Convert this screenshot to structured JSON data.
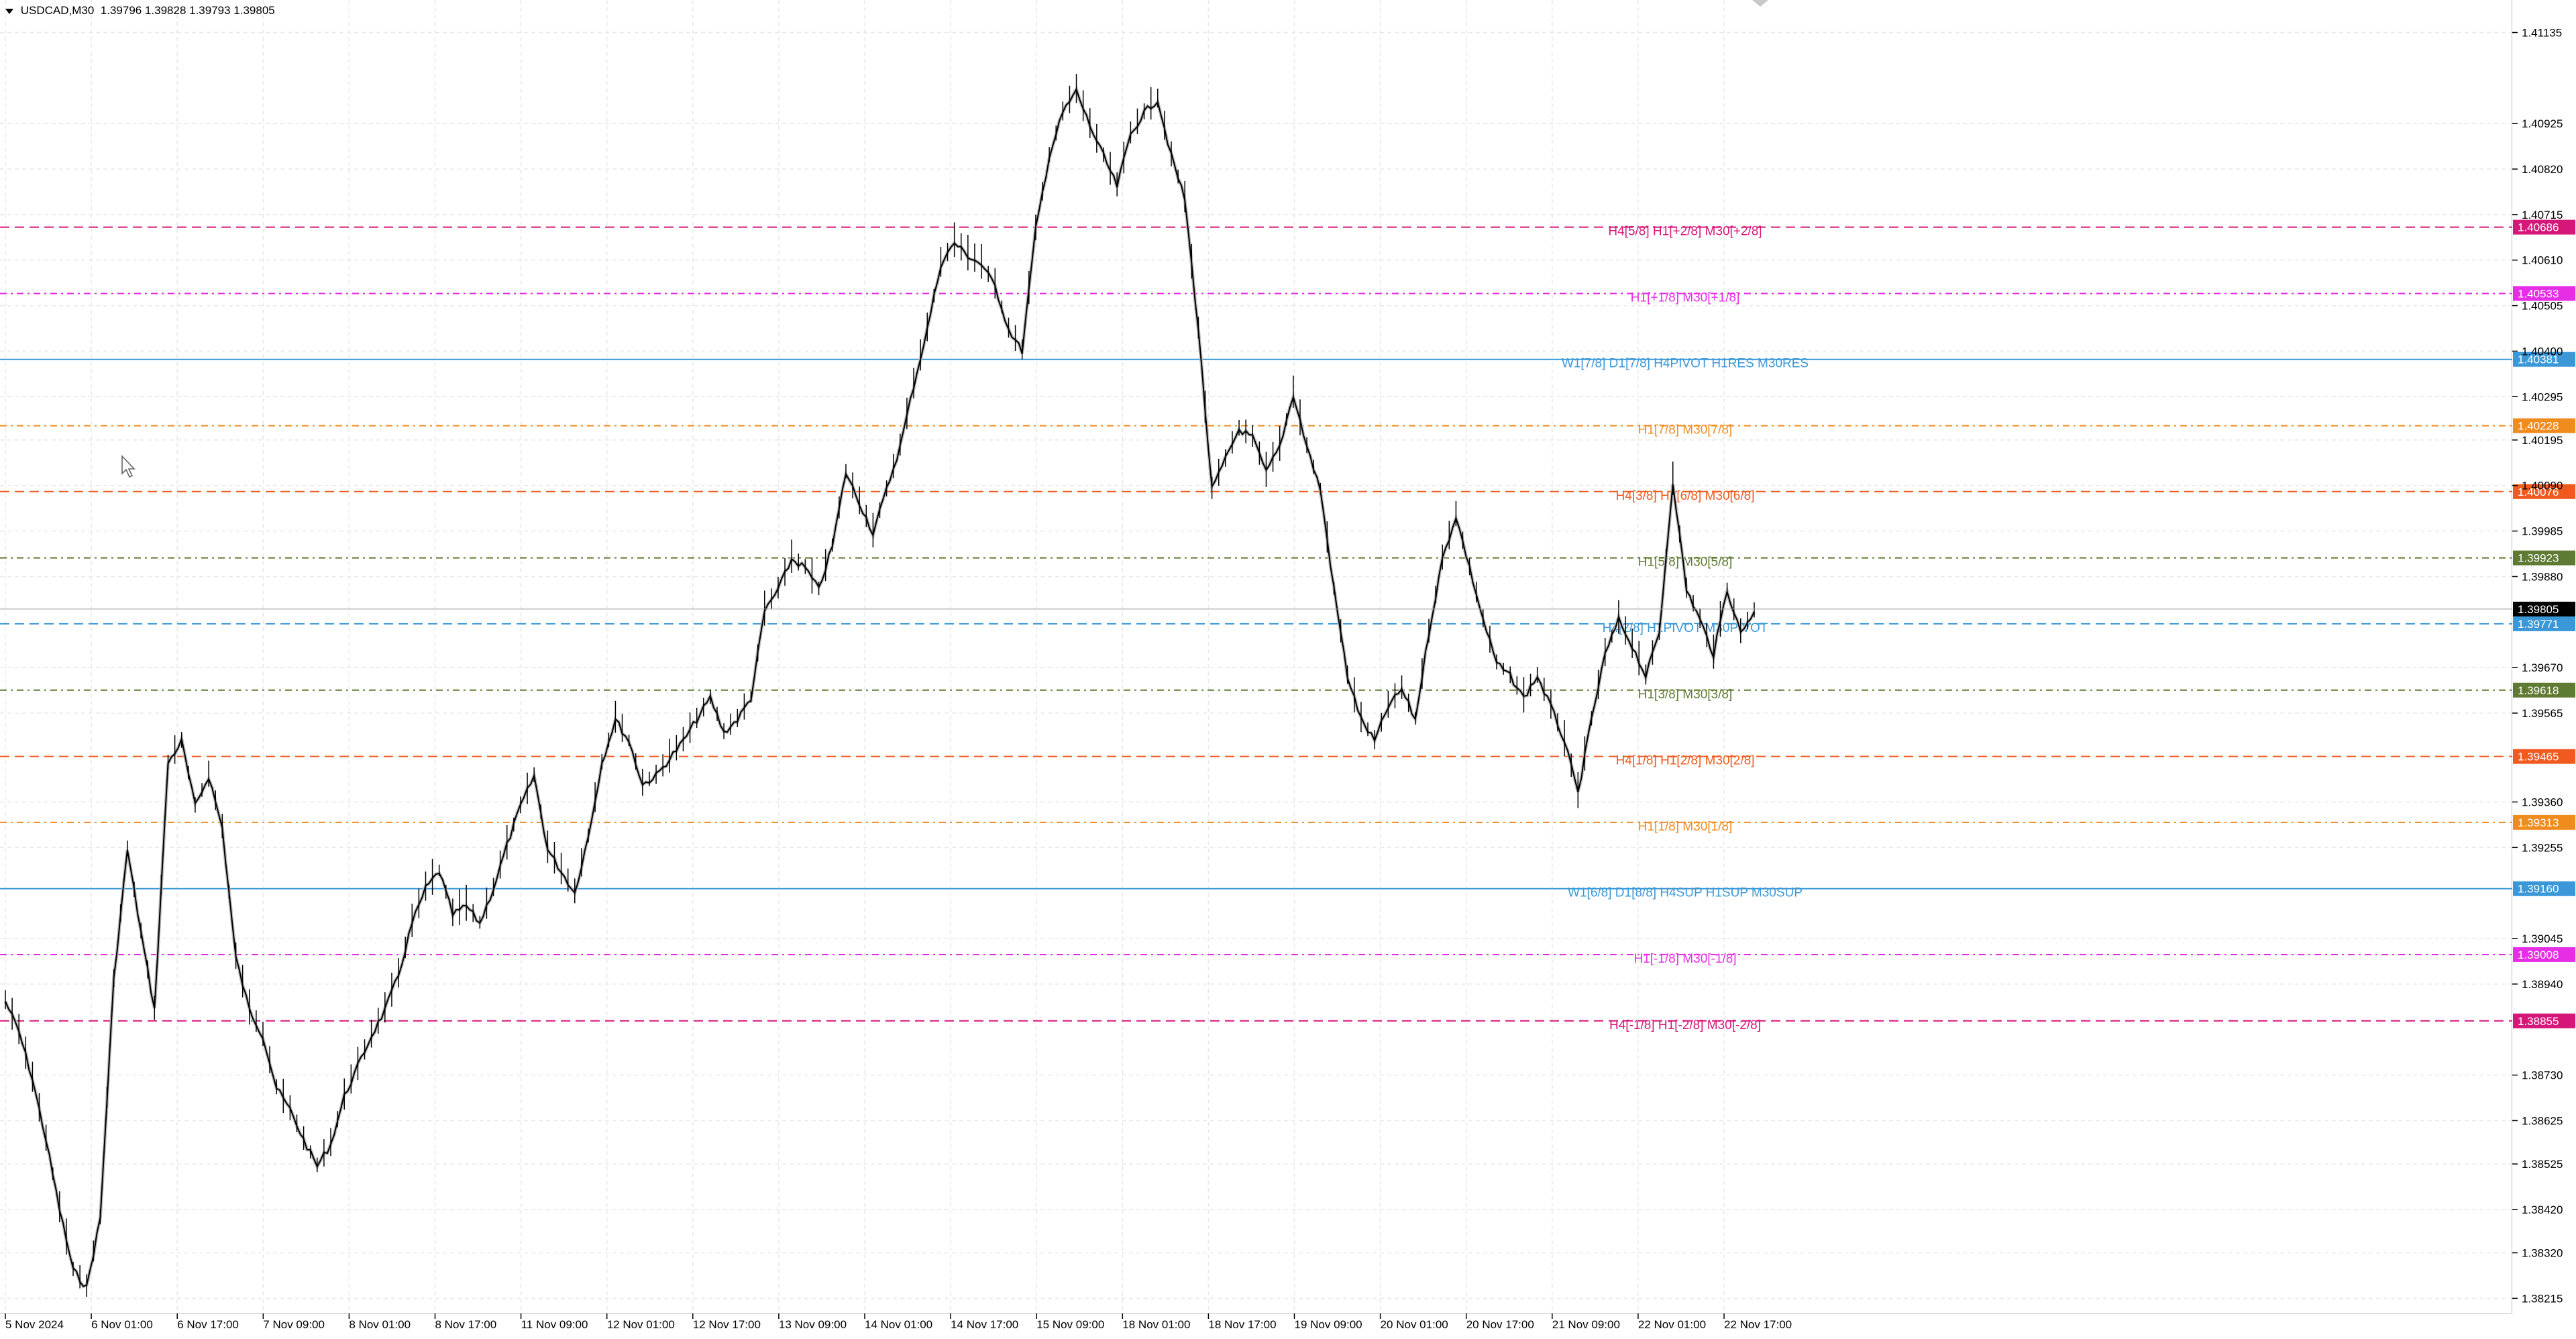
{
  "header": {
    "symbol": "USDCAD,M30",
    "ohlc": "1.39796 1.39828 1.39793 1.39805"
  },
  "colors": {
    "grid": "#e8e8e8",
    "candle": "#000000",
    "background": "#ffffff"
  },
  "chart_data": {
    "type": "line",
    "subtype": "candlestick-ohlc",
    "symbol": "USDCAD",
    "timeframe": "M30",
    "ylim": [
      1.3818,
      1.4121
    ],
    "y_ticks": [
      "1.41135",
      "1.40925",
      "1.40820",
      "1.40715",
      "1.40610",
      "1.40505",
      "1.40400",
      "1.40295",
      "1.40195",
      "1.40090",
      "1.39985",
      "1.39880",
      "1.39670",
      "1.39565",
      "1.39360",
      "1.39255",
      "1.39045",
      "1.38940",
      "1.38730",
      "1.38625",
      "1.38525",
      "1.38420",
      "1.38320",
      "1.38215"
    ],
    "x_ticks": [
      "5 Nov 2024",
      "6 Nov 01:00",
      "6 Nov 17:00",
      "7 Nov 09:00",
      "8 Nov 01:00",
      "8 Nov 17:00",
      "11 Nov 09:00",
      "12 Nov 01:00",
      "12 Nov 17:00",
      "13 Nov 09:00",
      "14 Nov 01:00",
      "14 Nov 17:00",
      "15 Nov 09:00",
      "18 Nov 01:00",
      "18 Nov 17:00",
      "19 Nov 09:00",
      "20 Nov 01:00",
      "20 Nov 17:00",
      "21 Nov 09:00",
      "22 Nov 01:00",
      "22 Nov 17:00"
    ],
    "current_price": {
      "value": 1.39805,
      "label": "1.39805",
      "color": "#000000"
    },
    "levels": [
      {
        "value": 1.40686,
        "price_label": "1.40686",
        "text": "H4[5/8] H1[+2/8] M30[+2/8]",
        "color": "#d6177a",
        "dash": "dash"
      },
      {
        "value": 1.40533,
        "price_label": "1.40533",
        "text": "H1[+1/8] M30[+1/8]",
        "color": "#e62ee6",
        "dash": "dashdot"
      },
      {
        "value": 1.40381,
        "price_label": "1.40381",
        "text": "W1[7/8] D1[7/8] H4PIVOT H1RES M30RES",
        "color": "#3a98d8",
        "dash": "solid"
      },
      {
        "value": 1.40228,
        "price_label": "1.40228",
        "text": "H1[7/8] M30[7/8]",
        "color": "#f08c1e",
        "dash": "dashdot"
      },
      {
        "value": 1.40076,
        "price_label": "1.40076",
        "text": "H4[3/8] H1[6/8] M30[6/8]",
        "color": "#f05a1e",
        "dash": "dash"
      },
      {
        "value": 1.39923,
        "price_label": "1.39923",
        "text": "H1[5/8] M30[5/8]",
        "color": "#5f7a32",
        "dash": "dashdot"
      },
      {
        "value": 1.39771,
        "price_label": "1.39771",
        "text": "H4[2/8] H1PIVOT M30PIVOT",
        "color": "#3a98d8",
        "dash": "dash"
      },
      {
        "value": 1.39618,
        "price_label": "1.39618",
        "text": "H1[3/8] M30[3/8]",
        "color": "#5f7a32",
        "dash": "dashdot"
      },
      {
        "value": 1.39465,
        "price_label": "1.39465",
        "text": "H4[1/8] H1[2/8] M30[2/8]",
        "color": "#f05a1e",
        "dash": "dash"
      },
      {
        "value": 1.39313,
        "price_label": "1.39313",
        "text": "H1[1/8] M30[1/8]",
        "color": "#f08c1e",
        "dash": "dashdot"
      },
      {
        "value": 1.3916,
        "price_label": "1.39160",
        "text": "W1[6/8] D1[8/8] H4SUP H1SUP M30SUP",
        "color": "#3a98d8",
        "dash": "solid"
      },
      {
        "value": 1.39008,
        "price_label": "1.39008",
        "text": "H1[-1/8] M30[-1/8]",
        "color": "#e62ee6",
        "dash": "dashdot"
      },
      {
        "value": 1.38855,
        "price_label": "1.38855",
        "text": "H4[-1/8] H1[-2/8] M30[-2/8]",
        "color": "#d6177a",
        "dash": "dash"
      }
    ],
    "price_path": [
      [
        0,
        1.389
      ],
      [
        1,
        1.3883
      ],
      [
        2,
        1.3872
      ],
      [
        3,
        1.3858
      ],
      [
        4,
        1.3842
      ],
      [
        5,
        1.3828
      ],
      [
        6,
        1.3824
      ],
      [
        7,
        1.384
      ],
      [
        8,
        1.3895
      ],
      [
        9,
        1.3925
      ],
      [
        10,
        1.3906
      ],
      [
        11,
        1.3888
      ],
      [
        12,
        1.3945
      ],
      [
        13,
        1.395
      ],
      [
        14,
        1.3935
      ],
      [
        15,
        1.3942
      ],
      [
        16,
        1.393
      ],
      [
        17,
        1.39
      ],
      [
        18,
        1.3888
      ],
      [
        19,
        1.3882
      ],
      [
        20,
        1.387
      ],
      [
        21,
        1.3865
      ],
      [
        22,
        1.3858
      ],
      [
        23,
        1.3852
      ],
      [
        24,
        1.3857
      ],
      [
        25,
        1.3868
      ],
      [
        26,
        1.3875
      ],
      [
        27,
        1.3882
      ],
      [
        28,
        1.3888
      ],
      [
        29,
        1.3896
      ],
      [
        30,
        1.3908
      ],
      [
        31,
        1.3916
      ],
      [
        32,
        1.392
      ],
      [
        33,
        1.391
      ],
      [
        34,
        1.3912
      ],
      [
        35,
        1.3908
      ],
      [
        36,
        1.3916
      ],
      [
        37,
        1.3926
      ],
      [
        38,
        1.3935
      ],
      [
        39,
        1.3942
      ],
      [
        40,
        1.3925
      ],
      [
        41,
        1.392
      ],
      [
        42,
        1.3915
      ],
      [
        43,
        1.3928
      ],
      [
        44,
        1.3945
      ],
      [
        45,
        1.3955
      ],
      [
        46,
        1.395
      ],
      [
        47,
        1.394
      ],
      [
        48,
        1.3942
      ],
      [
        49,
        1.3946
      ],
      [
        50,
        1.395
      ],
      [
        51,
        1.3955
      ],
      [
        52,
        1.396
      ],
      [
        53,
        1.3952
      ],
      [
        54,
        1.3955
      ],
      [
        55,
        1.396
      ],
      [
        56,
        1.398
      ],
      [
        57,
        1.3985
      ],
      [
        58,
        1.3992
      ],
      [
        59,
        1.399
      ],
      [
        60,
        1.3985
      ],
      [
        61,
        1.3995
      ],
      [
        62,
        1.4012
      ],
      [
        63,
        1.4005
      ],
      [
        64,
        1.3998
      ],
      [
        65,
        1.4008
      ],
      [
        66,
        1.4018
      ],
      [
        67,
        1.4032
      ],
      [
        68,
        1.4045
      ],
      [
        69,
        1.406
      ],
      [
        70,
        1.4065
      ],
      [
        71,
        1.4062
      ],
      [
        72,
        1.406
      ],
      [
        73,
        1.4055
      ],
      [
        74,
        1.4045
      ],
      [
        75,
        1.404
      ],
      [
        76,
        1.4068
      ],
      [
        77,
        1.4085
      ],
      [
        78,
        1.4095
      ],
      [
        79,
        1.41
      ],
      [
        80,
        1.4092
      ],
      [
        81,
        1.4085
      ],
      [
        82,
        1.4078
      ],
      [
        83,
        1.409
      ],
      [
        84,
        1.4095
      ],
      [
        85,
        1.4098
      ],
      [
        86,
        1.4085
      ],
      [
        87,
        1.4075
      ],
      [
        88,
        1.4045
      ],
      [
        89,
        1.4008
      ],
      [
        90,
        1.4015
      ],
      [
        91,
        1.4022
      ],
      [
        92,
        1.402
      ],
      [
        93,
        1.4012
      ],
      [
        94,
        1.4018
      ],
      [
        95,
        1.403
      ],
      [
        96,
        1.4018
      ],
      [
        97,
        1.4008
      ],
      [
        98,
        1.3985
      ],
      [
        99,
        1.3965
      ],
      [
        100,
        1.3955
      ],
      [
        101,
        1.395
      ],
      [
        102,
        1.3958
      ],
      [
        103,
        1.3962
      ],
      [
        104,
        1.3955
      ],
      [
        105,
        1.3975
      ],
      [
        106,
        1.3992
      ],
      [
        107,
        1.4002
      ],
      [
        108,
        1.399
      ],
      [
        109,
        1.3978
      ],
      [
        110,
        1.3968
      ],
      [
        111,
        1.3965
      ],
      [
        112,
        1.396
      ],
      [
        113,
        1.3965
      ],
      [
        114,
        1.3958
      ],
      [
        115,
        1.395
      ],
      [
        116,
        1.3938
      ],
      [
        117,
        1.3955
      ],
      [
        118,
        1.397
      ],
      [
        119,
        1.3978
      ],
      [
        120,
        1.3972
      ],
      [
        121,
        1.3965
      ],
      [
        122,
        1.3975
      ],
      [
        123,
        1.401
      ],
      [
        124,
        1.3985
      ],
      [
        125,
        1.3978
      ],
      [
        126,
        1.397
      ],
      [
        127,
        1.3985
      ],
      [
        128,
        1.3975
      ],
      [
        129,
        1.398
      ]
    ]
  }
}
